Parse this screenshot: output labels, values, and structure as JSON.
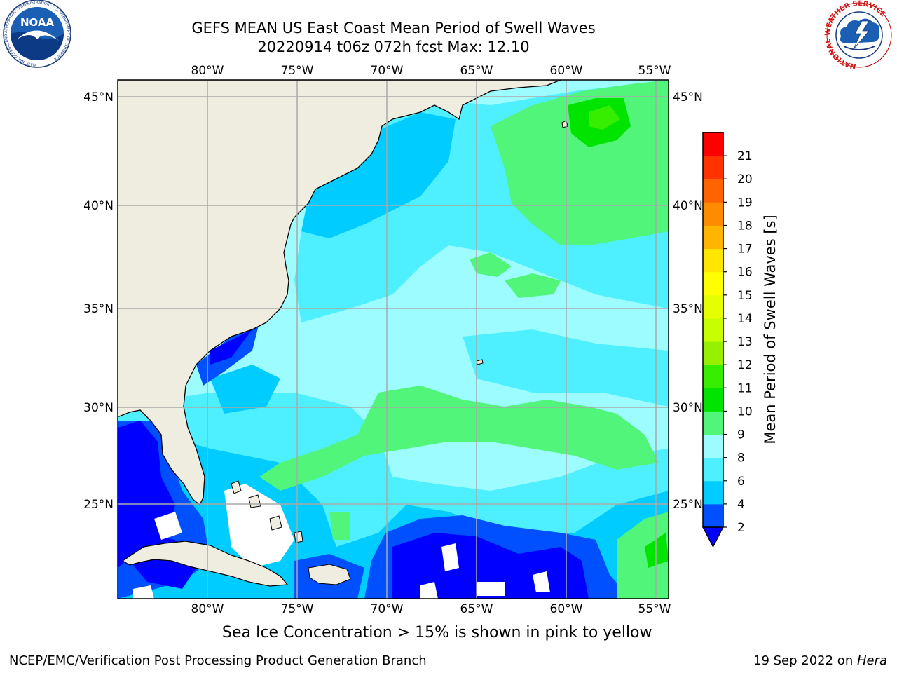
{
  "header": {
    "title_line1": "GEFS MEAN US East Coast Mean Period of Swell Waves",
    "title_line2": "20220914 t06z 072h fcst   Max: 12.10"
  },
  "logos": {
    "noaa": {
      "text": "NOAA",
      "ring_text": "NATIONAL OCEANIC AND ATMOSPHERIC ADMINISTRATION · U.S. DEPARTMENT OF COMMERCE"
    },
    "nws": {
      "ring_text": "NATIONAL WEATHER SERVICE"
    }
  },
  "map": {
    "lon_labels": [
      "80°W",
      "75°W",
      "70°W",
      "65°W",
      "60°W",
      "55°W"
    ],
    "lat_labels": [
      "45°N",
      "40°N",
      "35°N",
      "30°N",
      "25°N"
    ],
    "colors": {
      "land": "#efeddf",
      "coastline": "#000000",
      "gridline": "#a9a9a9",
      "no_data": "#ffffff"
    }
  },
  "colorbar": {
    "label": "Mean Period of Swell Waves [s]",
    "ticks": [
      "2",
      "4",
      "6",
      "8",
      "9",
      "10",
      "11",
      "12",
      "13",
      "14",
      "15",
      "16",
      "17",
      "18",
      "19",
      "20",
      "21"
    ],
    "bin_colors": [
      "#0050ff",
      "#00ccff",
      "#4ef0ff",
      "#9cfcff",
      "#50f57a",
      "#00e400",
      "#37ee00",
      "#96f000",
      "#c8ff00",
      "#e6ff00",
      "#ffff00",
      "#ffe600",
      "#ffb400",
      "#ff8c00",
      "#ff6400",
      "#ff3200",
      "#ff0000"
    ],
    "under_color": "#0000ff"
  },
  "footer": {
    "ice_note": "Sea Ice Concentration > 15% is shown in pink to yellow",
    "left": "NCEP/EMC/Verification Post Processing Product Generation Branch",
    "right_date": "19 Sep 2022 on ",
    "right_machine": "Hera"
  }
}
